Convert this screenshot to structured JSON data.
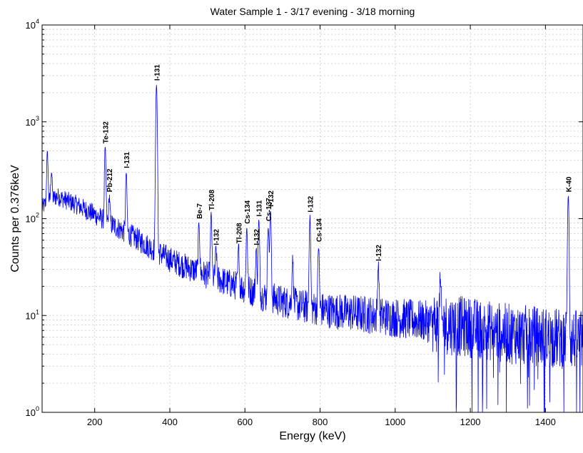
{
  "chart_data": {
    "type": "line",
    "title": "Water Sample 1 - 3/17 evening - 3/18 morning",
    "xlabel": "Energy (keV)",
    "ylabel": "Counts per 0.376keV",
    "xlim": [
      60,
      1500
    ],
    "ylim": [
      1,
      10000
    ],
    "y_scale": "log",
    "grid": true,
    "line_color": "#0000ff",
    "x_ticks": [
      200,
      400,
      600,
      800,
      1000,
      1200,
      1400
    ],
    "x_tick_labels": [
      "200",
      "400",
      "600",
      "800",
      "1000",
      "1200",
      "1400"
    ],
    "y_ticks": [
      {
        "value": 1,
        "base": "10",
        "exp": "0"
      },
      {
        "value": 10,
        "base": "10",
        "exp": "1"
      },
      {
        "value": 100,
        "base": "10",
        "exp": "2"
      },
      {
        "value": 1000,
        "base": "10",
        "exp": "3"
      },
      {
        "value": 10000,
        "base": "10",
        "exp": "4"
      }
    ],
    "continuum": [
      [
        60,
        130
      ],
      [
        75,
        150
      ],
      [
        100,
        170
      ],
      [
        150,
        140
      ],
      [
        200,
        110
      ],
      [
        250,
        85
      ],
      [
        300,
        66
      ],
      [
        350,
        50
      ],
      [
        400,
        38
      ],
      [
        450,
        31
      ],
      [
        500,
        26
      ],
      [
        550,
        22
      ],
      [
        600,
        19
      ],
      [
        650,
        16
      ],
      [
        700,
        14
      ],
      [
        750,
        12.5
      ],
      [
        800,
        11.5
      ],
      [
        900,
        10.5
      ],
      [
        1000,
        9.5
      ],
      [
        1100,
        8.5
      ],
      [
        1200,
        7.5
      ],
      [
        1300,
        6.5
      ],
      [
        1400,
        6
      ],
      [
        1500,
        5.5
      ]
    ],
    "noise_regions": [
      {
        "from": 1100,
        "to": 1500,
        "depth": 0.7
      }
    ],
    "peaks": [
      {
        "x": 74,
        "y": 480,
        "label": ""
      },
      {
        "x": 85,
        "y": 310,
        "label": ""
      },
      {
        "x": 228,
        "y": 540,
        "label": "Te-132"
      },
      {
        "x": 239,
        "y": 170,
        "label": "Pb-212"
      },
      {
        "x": 284,
        "y": 300,
        "label": "I-131"
      },
      {
        "x": 364.5,
        "y": 2400,
        "label": "I-131"
      },
      {
        "x": 477.6,
        "y": 90,
        "label": "Be-7"
      },
      {
        "x": 510,
        "y": 110,
        "label": "Tl-208"
      },
      {
        "x": 523,
        "y": 48,
        "label": "I-132"
      },
      {
        "x": 583,
        "y": 50,
        "label": "Tl-208"
      },
      {
        "x": 605,
        "y": 80,
        "label": "Cs-134"
      },
      {
        "x": 630,
        "y": 48,
        "label": "I-132"
      },
      {
        "x": 637,
        "y": 95,
        "label": "I-131"
      },
      {
        "x": 662,
        "y": 85,
        "label": "Cs-137"
      },
      {
        "x": 668,
        "y": 120,
        "label": "I-132"
      },
      {
        "x": 727,
        "y": 38,
        "label": ""
      },
      {
        "x": 773,
        "y": 105,
        "label": "I-132"
      },
      {
        "x": 796,
        "y": 52,
        "label": "Cs-134"
      },
      {
        "x": 955,
        "y": 33,
        "label": "I-132"
      },
      {
        "x": 1120,
        "y": 22,
        "label": ""
      },
      {
        "x": 1460.8,
        "y": 170,
        "label": "K-40"
      }
    ]
  }
}
